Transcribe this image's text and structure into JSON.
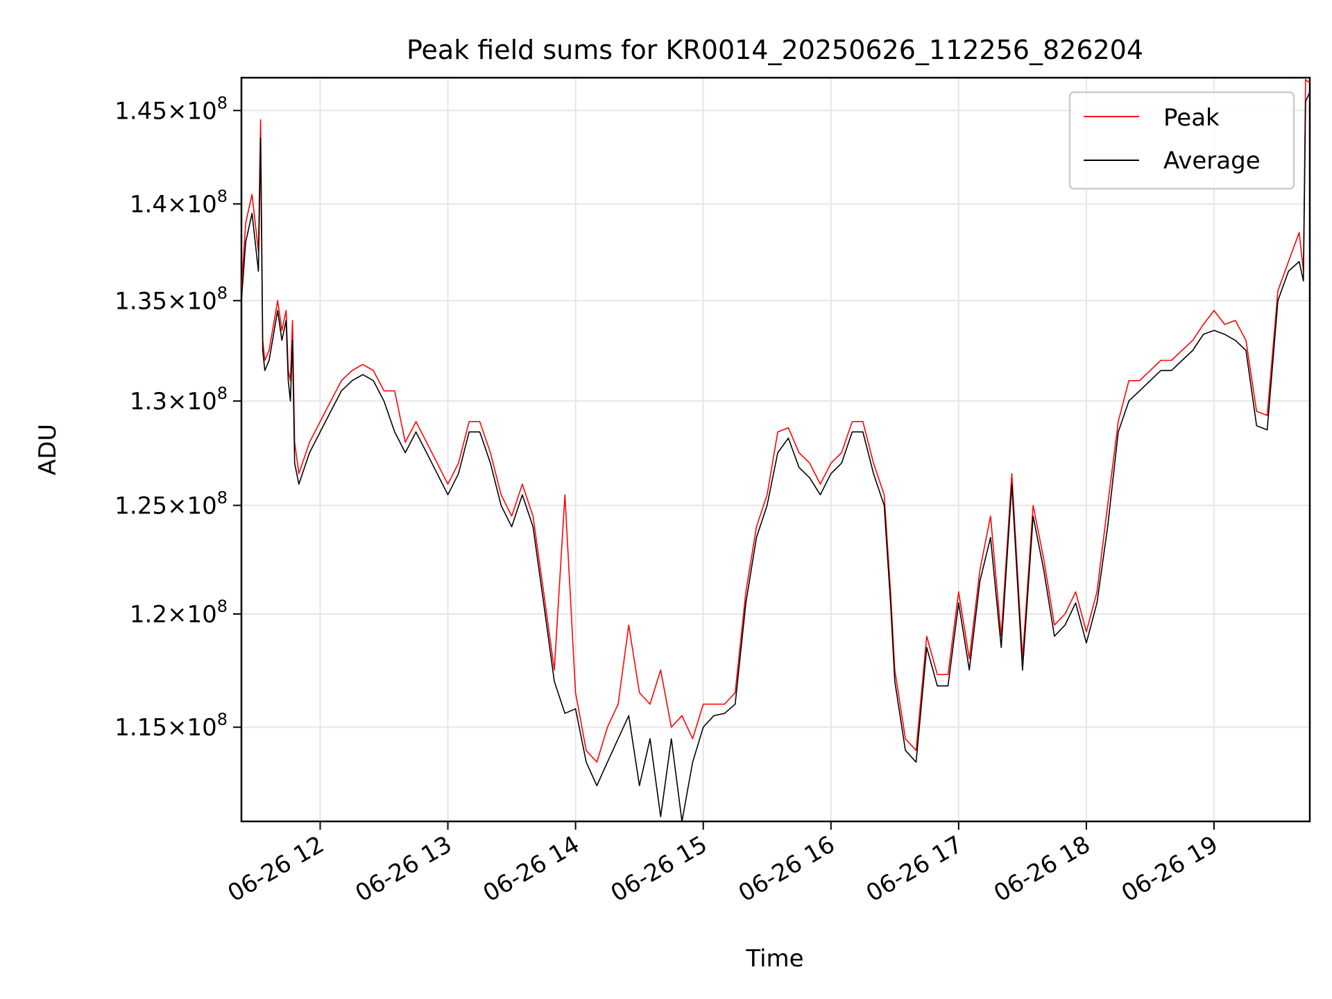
{
  "chart_data": {
    "type": "line",
    "title": "Peak field sums for KR0014_20250626_112256_826204",
    "xlabel": "Time",
    "ylabel": "ADU",
    "yscale": "log",
    "grid": true,
    "legend_position": "top-right",
    "xlim": [
      "06-26 11:23",
      "06-26 19:45"
    ],
    "ylim": [
      111000000,
      146800000
    ],
    "x_tick_labels": [
      "06-26 12",
      "06-26 13",
      "06-26 14",
      "06-26 15",
      "06-26 16",
      "06-26 17",
      "06-26 18",
      "06-26 19"
    ],
    "y_ticks": [
      {
        "value": 115000000,
        "mantissa": "1.15",
        "exponent": "8"
      },
      {
        "value": 120000000,
        "mantissa": "1.2",
        "exponent": "8"
      },
      {
        "value": 125000000,
        "mantissa": "1.25",
        "exponent": "8"
      },
      {
        "value": 130000000,
        "mantissa": "1.3",
        "exponent": "8"
      },
      {
        "value": 135000000,
        "mantissa": "1.35",
        "exponent": "8"
      },
      {
        "value": 140000000,
        "mantissa": "1.4",
        "exponent": "8"
      },
      {
        "value": 145000000,
        "mantissa": "1.45",
        "exponent": "8"
      }
    ],
    "series": [
      {
        "name": "Peak",
        "color": "#ff0000"
      },
      {
        "name": "Average",
        "color": "#000000"
      }
    ],
    "x": [
      "06-26 11:23",
      "06-26 11:25",
      "06-26 11:28",
      "06-26 11:31",
      "06-26 11:32",
      "06-26 11:33",
      "06-26 11:34",
      "06-26 11:36",
      "06-26 11:40",
      "06-26 11:42",
      "06-26 11:44",
      "06-26 11:45",
      "06-26 11:46",
      "06-26 11:47",
      "06-26 11:48",
      "06-26 11:50",
      "06-26 11:55",
      "06-26 12:00",
      "06-26 12:05",
      "06-26 12:10",
      "06-26 12:15",
      "06-26 12:20",
      "06-26 12:25",
      "06-26 12:30",
      "06-26 12:35",
      "06-26 12:40",
      "06-26 12:45",
      "06-26 12:50",
      "06-26 12:55",
      "06-26 13:00",
      "06-26 13:05",
      "06-26 13:10",
      "06-26 13:15",
      "06-26 13:20",
      "06-26 13:25",
      "06-26 13:30",
      "06-26 13:35",
      "06-26 13:40",
      "06-26 13:45",
      "06-26 13:50",
      "06-26 13:55",
      "06-26 14:00",
      "06-26 14:05",
      "06-26 14:10",
      "06-26 14:15",
      "06-26 14:20",
      "06-26 14:25",
      "06-26 14:30",
      "06-26 14:35",
      "06-26 14:40",
      "06-26 14:45",
      "06-26 14:50",
      "06-26 14:55",
      "06-26 15:00",
      "06-26 15:05",
      "06-26 15:10",
      "06-26 15:15",
      "06-26 15:20",
      "06-26 15:25",
      "06-26 15:30",
      "06-26 15:35",
      "06-26 15:40",
      "06-26 15:45",
      "06-26 15:50",
      "06-26 15:55",
      "06-26 16:00",
      "06-26 16:05",
      "06-26 16:10",
      "06-26 16:15",
      "06-26 16:20",
      "06-26 16:25",
      "06-26 16:28",
      "06-26 16:30",
      "06-26 16:35",
      "06-26 16:40",
      "06-26 16:45",
      "06-26 16:50",
      "06-26 16:55",
      "06-26 17:00",
      "06-26 17:05",
      "06-26 17:10",
      "06-26 17:15",
      "06-26 17:20",
      "06-26 17:25",
      "06-26 17:30",
      "06-26 17:35",
      "06-26 17:40",
      "06-26 17:45",
      "06-26 17:50",
      "06-26 17:55",
      "06-26 18:00",
      "06-26 18:05",
      "06-26 18:10",
      "06-26 18:15",
      "06-26 18:20",
      "06-26 18:25",
      "06-26 18:30",
      "06-26 18:35",
      "06-26 18:40",
      "06-26 18:45",
      "06-26 18:50",
      "06-26 18:55",
      "06-26 19:00",
      "06-26 19:05",
      "06-26 19:10",
      "06-26 19:15",
      "06-26 19:20",
      "06-26 19:25",
      "06-26 19:30",
      "06-26 19:35",
      "06-26 19:40",
      "06-26 19:42",
      "06-26 19:43",
      "06-26 19:45"
    ],
    "average": [
      135000000,
      138000000,
      139500000,
      136500000,
      143500000,
      132500000,
      131500000,
      132000000,
      134500000,
      133000000,
      134000000,
      131000000,
      130000000,
      133000000,
      127000000,
      126000000,
      127500000,
      128500000,
      129500000,
      130500000,
      131000000,
      131300000,
      131000000,
      130000000,
      128500000,
      127500000,
      128500000,
      127500000,
      126500000,
      125500000,
      126500000,
      128500000,
      128500000,
      127000000,
      125000000,
      124000000,
      125500000,
      124000000,
      120500000,
      117000000,
      115600000,
      115800000,
      113500000,
      112500000,
      113500000,
      114500000,
      115500000,
      112500000,
      114500000,
      111200000,
      114500000,
      111000000,
      113500000,
      115000000,
      115500000,
      115600000,
      116000000,
      120500000,
      123500000,
      125000000,
      127500000,
      128200000,
      126800000,
      126300000,
      125500000,
      126500000,
      127000000,
      128500000,
      128500000,
      126500000,
      125000000,
      120500000,
      117000000,
      114000000,
      113500000,
      118500000,
      116800000,
      116800000,
      120500000,
      117500000,
      121500000,
      123500000,
      118500000,
      126000000,
      117500000,
      124500000,
      122000000,
      119000000,
      119500000,
      120500000,
      118700000,
      120500000,
      124000000,
      128500000,
      130000000,
      130500000,
      131000000,
      131500000,
      131500000,
      132000000,
      132500000,
      133300000,
      133500000,
      133300000,
      133000000,
      132500000,
      128800000,
      128600000,
      135000000,
      136500000,
      137000000,
      136000000,
      145500000,
      146000000
    ],
    "peak": [
      135500000,
      139000000,
      140500000,
      137500000,
      144500000,
      133000000,
      132000000,
      132500000,
      135000000,
      133500000,
      134500000,
      131500000,
      131000000,
      134000000,
      128000000,
      126500000,
      128000000,
      129000000,
      130000000,
      131000000,
      131500000,
      131800000,
      131500000,
      130500000,
      130500000,
      128000000,
      129000000,
      128000000,
      127000000,
      126000000,
      127000000,
      129000000,
      129000000,
      127500000,
      125500000,
      124500000,
      126000000,
      124500000,
      121000000,
      117500000,
      125500000,
      116500000,
      114000000,
      113500000,
      115000000,
      116000000,
      119500000,
      116500000,
      116000000,
      117500000,
      115000000,
      115500000,
      114500000,
      116000000,
      116000000,
      116000000,
      116500000,
      121000000,
      124000000,
      125500000,
      128500000,
      128700000,
      127500000,
      127000000,
      126000000,
      127000000,
      127500000,
      129000000,
      129000000,
      127000000,
      125500000,
      121000000,
      117500000,
      114500000,
      114000000,
      119000000,
      117300000,
      117300000,
      121000000,
      118000000,
      122000000,
      124500000,
      119000000,
      126500000,
      118000000,
      125000000,
      122500000,
      119500000,
      120000000,
      121000000,
      119200000,
      121000000,
      125000000,
      129000000,
      131000000,
      131000000,
      131500000,
      132000000,
      132000000,
      132500000,
      133000000,
      133800000,
      134500000,
      133800000,
      134000000,
      133000000,
      129500000,
      129300000,
      135500000,
      137000000,
      138500000,
      136500000,
      146700000,
      146500000
    ]
  },
  "legend": {
    "peak_label": "Peak",
    "average_label": "Average"
  }
}
